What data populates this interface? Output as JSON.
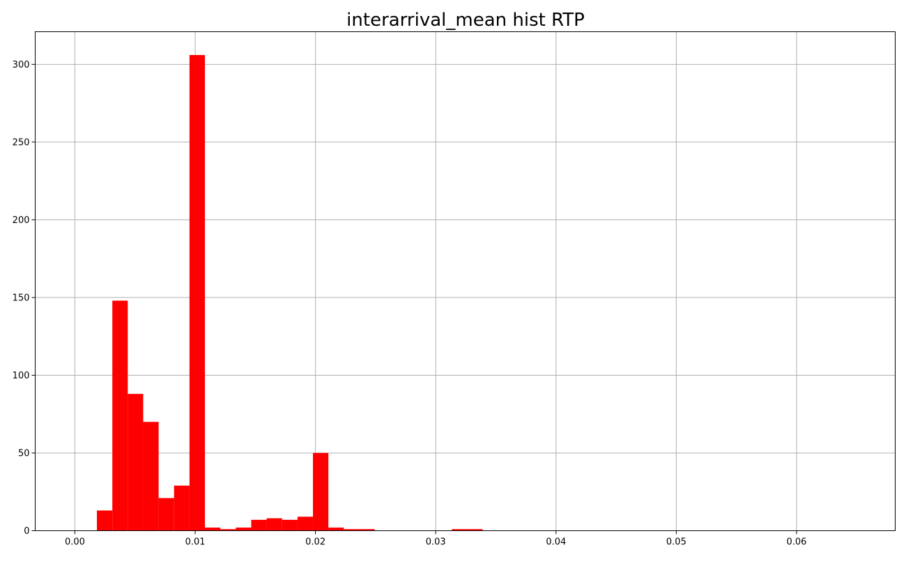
{
  "chart_data": {
    "type": "bar",
    "title": "interarrival_mean hist RTP",
    "xlabel": "",
    "ylabel": "",
    "xlim": [
      -0.0033,
      0.0682
    ],
    "ylim": [
      0,
      321
    ],
    "grid": true,
    "bar_color": "#ff0000",
    "grid_color": "#b0b0b0",
    "x_ticks": [
      0.0,
      0.01,
      0.02,
      0.03,
      0.04,
      0.05,
      0.06
    ],
    "x_tick_labels": [
      "0.00",
      "0.01",
      "0.02",
      "0.03",
      "0.04",
      "0.05",
      "0.06"
    ],
    "y_ticks": [
      0,
      50,
      100,
      150,
      200,
      250,
      300
    ],
    "y_tick_labels": [
      "0",
      "50",
      "100",
      "150",
      "200",
      "250",
      "300"
    ],
    "bin_start": 0.00183,
    "bin_width": 0.001283,
    "bin_counts": [
      13,
      148,
      88,
      70,
      21,
      29,
      306,
      2,
      1,
      2,
      7,
      8,
      7,
      9,
      50,
      2,
      1,
      1,
      0,
      0,
      0,
      0,
      0,
      1,
      1,
      0,
      0,
      0,
      0,
      0,
      0,
      0,
      0,
      0,
      0,
      0,
      0,
      0,
      0,
      0,
      0,
      0,
      0,
      0,
      0,
      0,
      0,
      0,
      0,
      0
    ]
  }
}
